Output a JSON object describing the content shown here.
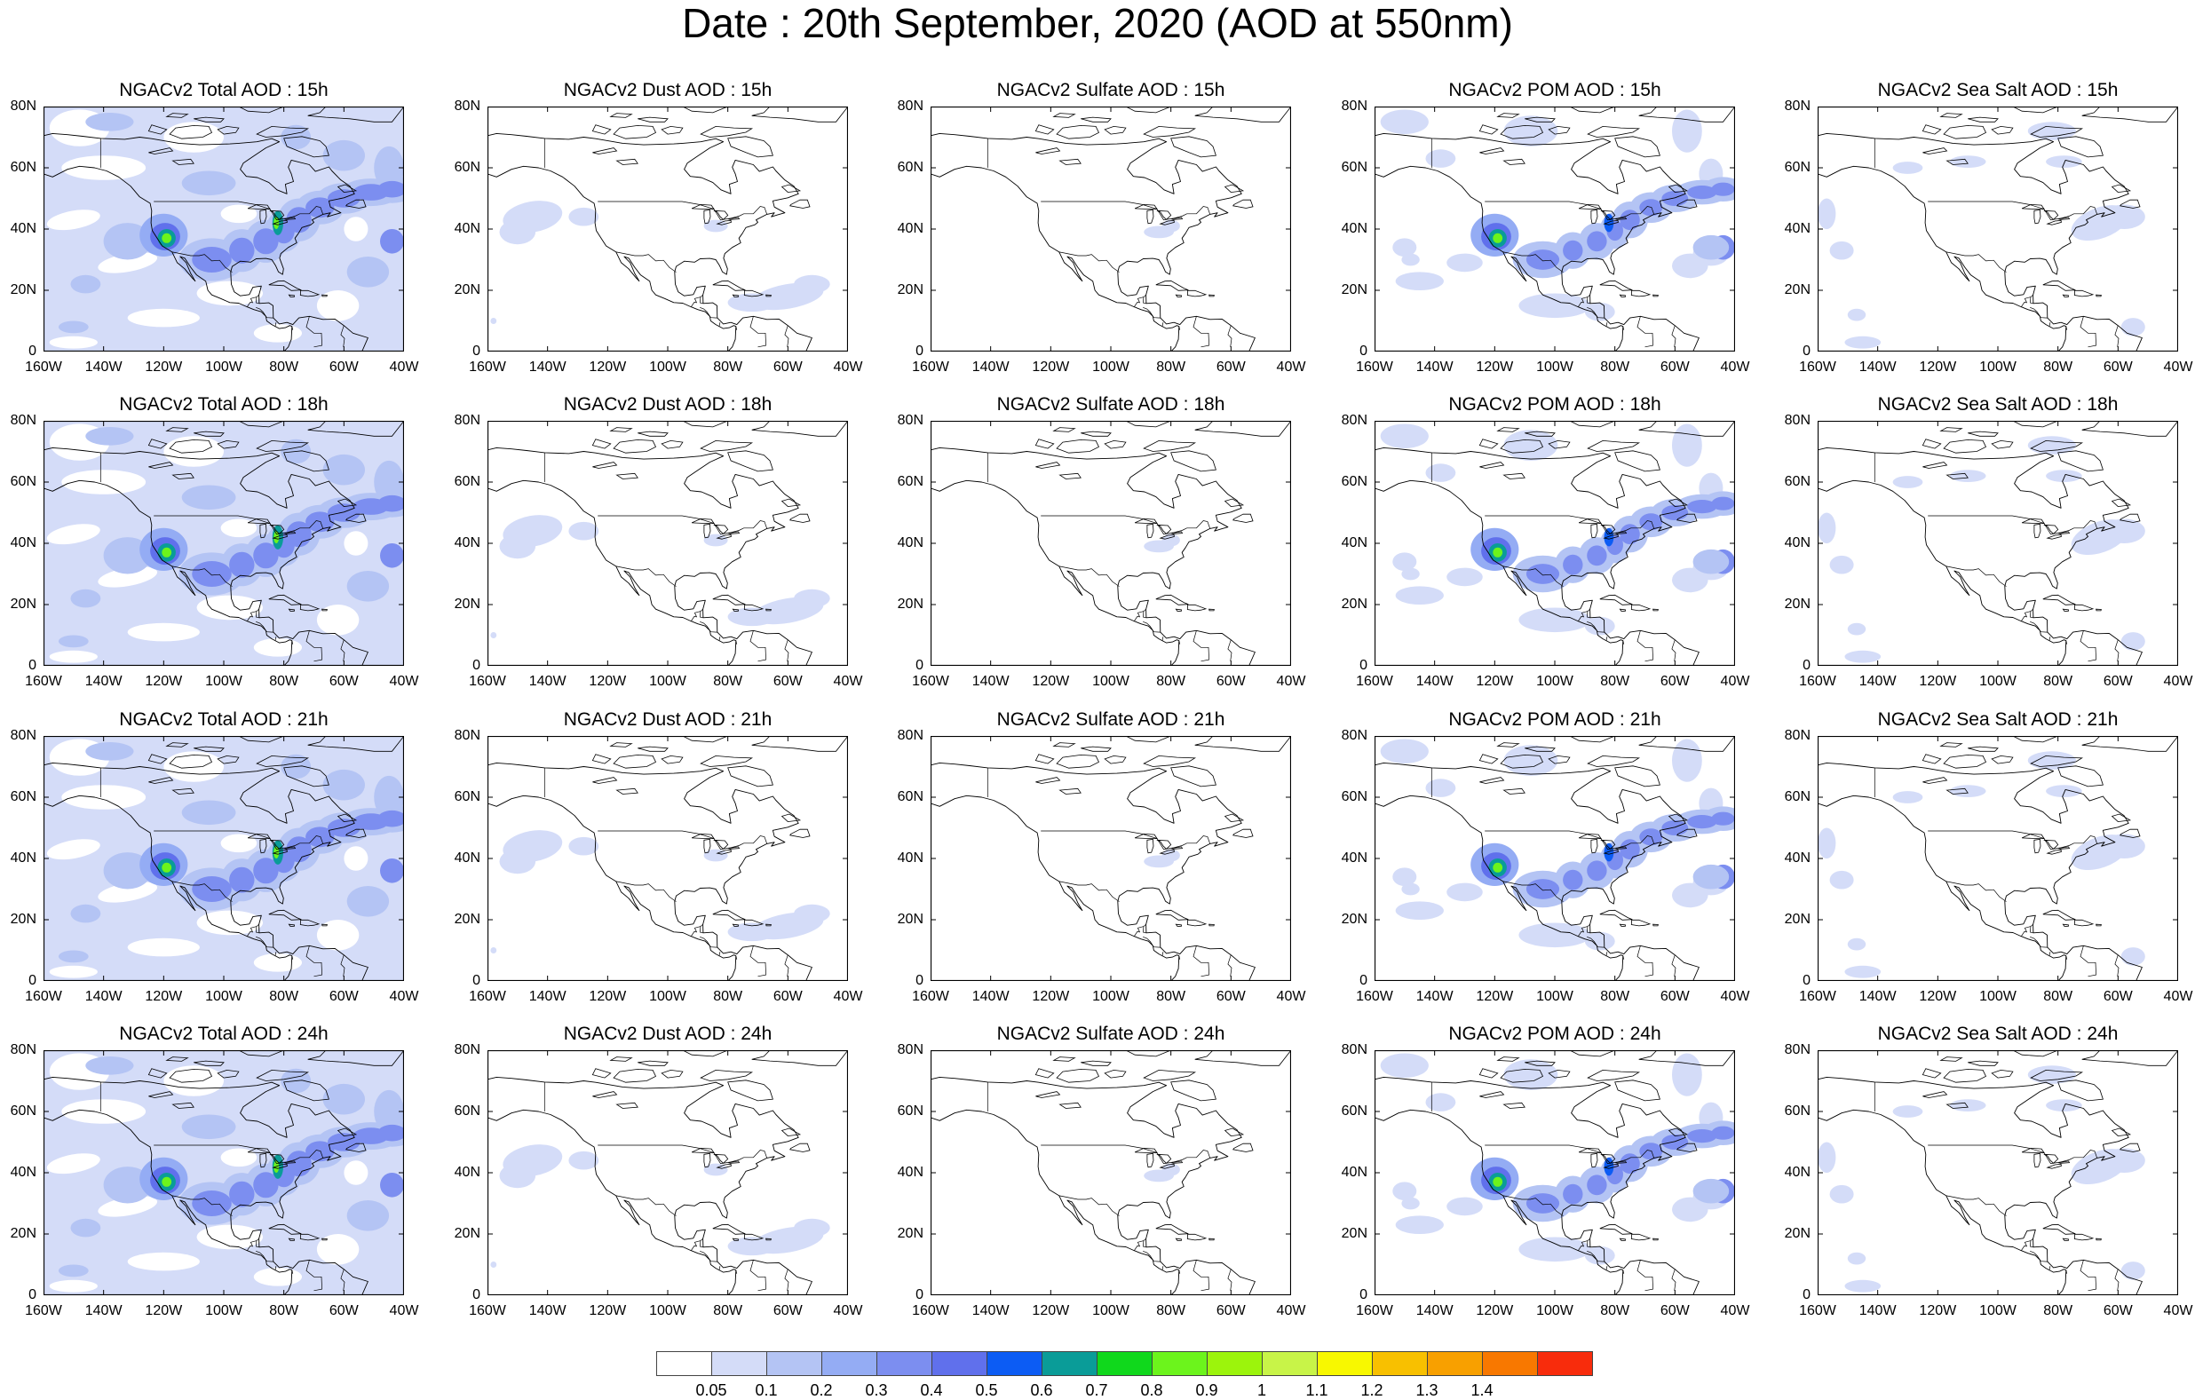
{
  "title": "Date : 20th September, 2020 (AOD at 550nm)",
  "map": {
    "projection": "cylindrical-equidistant",
    "lon_range": [
      -160,
      -40
    ],
    "lat_range": [
      0,
      80
    ],
    "x_ticks": [
      "160W",
      "140W",
      "120W",
      "100W",
      "80W",
      "60W",
      "40W"
    ],
    "y_ticks": [
      "80N",
      "60N",
      "40N",
      "20N",
      "0"
    ]
  },
  "panels": [
    [
      {
        "title": "NGACv2 Total AOD : 15h",
        "type": "total"
      },
      {
        "title": "NGACv2 Dust AOD : 15h",
        "type": "dust"
      },
      {
        "title": "NGACv2 Sulfate AOD : 15h",
        "type": "sulfate"
      },
      {
        "title": "NGACv2 POM AOD : 15h",
        "type": "pom"
      },
      {
        "title": "NGACv2 Sea Salt AOD : 15h",
        "type": "seasalt"
      }
    ],
    [
      {
        "title": "NGACv2 Total AOD : 18h",
        "type": "total"
      },
      {
        "title": "NGACv2 Dust AOD : 18h",
        "type": "dust"
      },
      {
        "title": "NGACv2 Sulfate AOD : 18h",
        "type": "sulfate"
      },
      {
        "title": "NGACv2 POM AOD : 18h",
        "type": "pom"
      },
      {
        "title": "NGACv2 Sea Salt AOD : 18h",
        "type": "seasalt"
      }
    ],
    [
      {
        "title": "NGACv2 Total AOD : 21h",
        "type": "total"
      },
      {
        "title": "NGACv2 Dust AOD : 21h",
        "type": "dust"
      },
      {
        "title": "NGACv2 Sulfate AOD : 21h",
        "type": "sulfate"
      },
      {
        "title": "NGACv2 POM AOD : 21h",
        "type": "pom"
      },
      {
        "title": "NGACv2 Sea Salt AOD : 21h",
        "type": "seasalt"
      }
    ],
    [
      {
        "title": "NGACv2 Total AOD : 24h",
        "type": "total"
      },
      {
        "title": "NGACv2 Dust AOD : 24h",
        "type": "dust"
      },
      {
        "title": "NGACv2 Sulfate AOD : 24h",
        "type": "sulfate"
      },
      {
        "title": "NGACv2 POM AOD : 24h",
        "type": "pom"
      },
      {
        "title": "NGACv2 Sea Salt  AOD : 24h",
        "type": "seasalt"
      }
    ]
  ],
  "colorbar": {
    "labels": [
      "0.05",
      "0.1",
      "0.2",
      "0.3",
      "0.4",
      "0.5",
      "0.6",
      "0.7",
      "0.8",
      "0.9",
      "1",
      "1.1",
      "1.2",
      "1.3",
      "1.4"
    ],
    "colors": [
      "#ffffff",
      "#d4dcf8",
      "#b4c4f4",
      "#94acf4",
      "#7c8ef0",
      "#6070ec",
      "#0c5cf4",
      "#0a9c98",
      "#10d81c",
      "#6cf41c",
      "#9cf40c",
      "#c8f448",
      "#f8f800",
      "#f8c000",
      "#f8a000",
      "#f87800",
      "#f82c0c"
    ]
  }
}
